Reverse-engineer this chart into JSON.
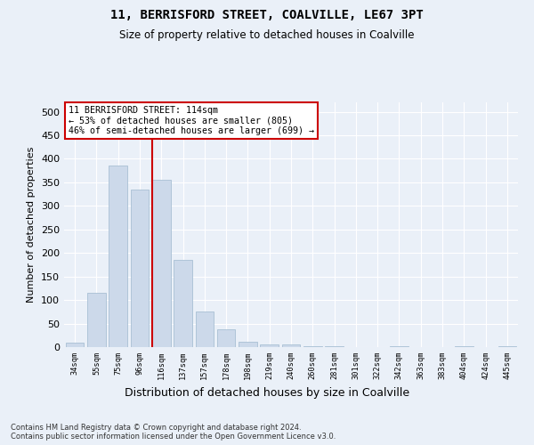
{
  "title": "11, BERRISFORD STREET, COALVILLE, LE67 3PT",
  "subtitle": "Size of property relative to detached houses in Coalville",
  "xlabel": "Distribution of detached houses by size in Coalville",
  "ylabel": "Number of detached properties",
  "bar_color": "#ccd9ea",
  "bar_edge_color": "#a8bfd4",
  "background_color": "#eaf0f8",
  "grid_color": "#ffffff",
  "vline_color": "#cc0000",
  "vline_x_index": 4,
  "annotation_text": "11 BERRISFORD STREET: 114sqm\n← 53% of detached houses are smaller (805)\n46% of semi-detached houses are larger (699) →",
  "annotation_box_color": "#cc0000",
  "footnote": "Contains HM Land Registry data © Crown copyright and database right 2024.\nContains public sector information licensed under the Open Government Licence v3.0.",
  "bins": [
    "34sqm",
    "55sqm",
    "75sqm",
    "96sqm",
    "116sqm",
    "137sqm",
    "157sqm",
    "178sqm",
    "198sqm",
    "219sqm",
    "240sqm",
    "260sqm",
    "281sqm",
    "301sqm",
    "322sqm",
    "342sqm",
    "363sqm",
    "383sqm",
    "404sqm",
    "424sqm",
    "445sqm"
  ],
  "values": [
    10,
    115,
    385,
    335,
    355,
    185,
    75,
    38,
    12,
    6,
    5,
    1,
    1,
    0,
    0,
    2,
    0,
    0,
    2,
    0,
    2
  ],
  "ylim": [
    0,
    520
  ],
  "yticks": [
    0,
    50,
    100,
    150,
    200,
    250,
    300,
    350,
    400,
    450,
    500
  ]
}
